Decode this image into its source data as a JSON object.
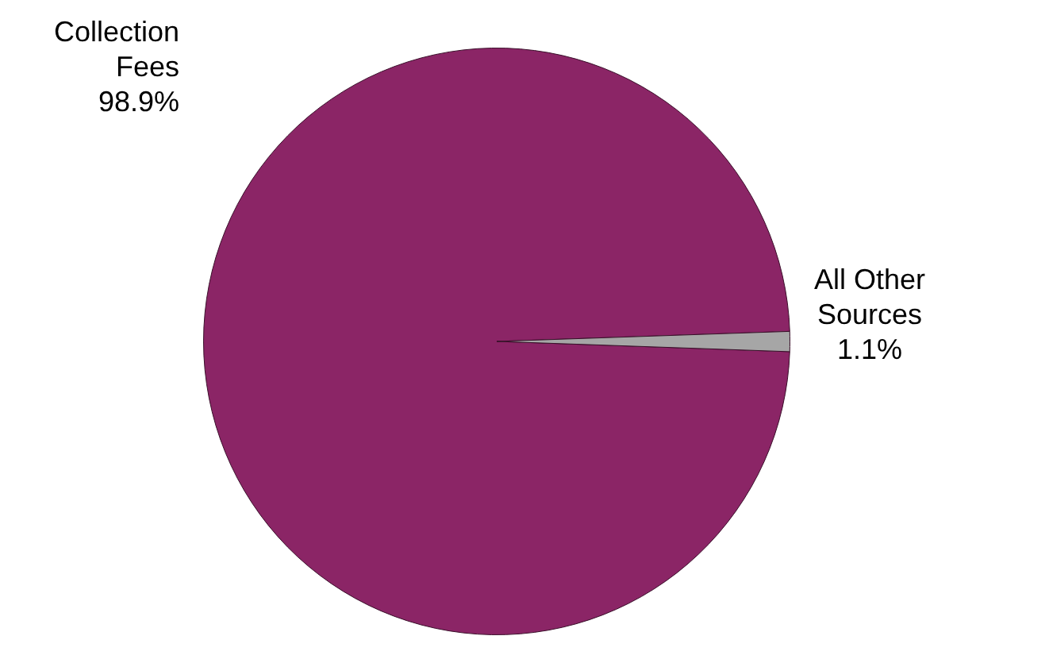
{
  "chart_data": {
    "type": "pie",
    "categories": [
      "Collection Fees",
      "All Other Sources"
    ],
    "values": [
      98.9,
      1.1
    ],
    "colors": [
      "#8b2566",
      "#a6a6a6"
    ],
    "value_labels": [
      "98.9%",
      "1.1%"
    ],
    "legend": false
  }
}
